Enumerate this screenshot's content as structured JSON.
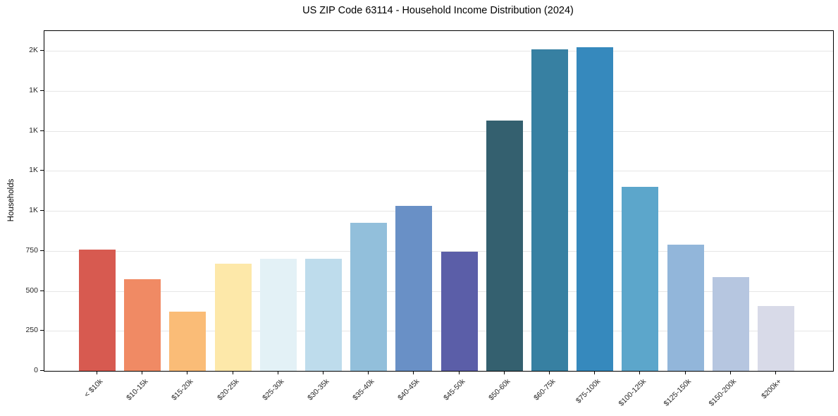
{
  "title": "US ZIP Code 63114 - Household Income Distribution (2024)",
  "chart_data": {
    "type": "bar",
    "title": "US ZIP Code 63114 - Household Income Distribution (2024)",
    "xlabel": "",
    "ylabel": "Households",
    "ylim": [
      0,
      2125
    ],
    "grid": "horizontal",
    "legend": "none",
    "categories": [
      "< $10k",
      "$10-15k",
      "$15-20k",
      "$20-25k",
      "$25-30k",
      "$30-35k",
      "$35-40k",
      "$40-45k",
      "$45-50k",
      "$50-60k",
      "$60-75k",
      "$75-100k",
      "$100-125k",
      "$125-150k",
      "$150-200k",
      "$200k+"
    ],
    "values": [
      760,
      575,
      370,
      670,
      700,
      700,
      925,
      1030,
      745,
      1565,
      2010,
      2025,
      1150,
      790,
      585,
      405
    ],
    "bar_colors": [
      "#d75a50",
      "#f08a64",
      "#fabc77",
      "#fde8a9",
      "#e3f1f6",
      "#bedcec",
      "#92bfdb",
      "#6990c6",
      "#5b5ea8",
      "#34606f",
      "#3780a2",
      "#3689bd",
      "#5ca6cb",
      "#92b6da",
      "#b6c6e0",
      "#d8dae8"
    ],
    "y_ticks": [
      {
        "value": 0,
        "label": "0"
      },
      {
        "value": 250,
        "label": "250"
      },
      {
        "value": 500,
        "label": "500"
      },
      {
        "value": 750,
        "label": "750"
      },
      {
        "value": 1000,
        "label": "1K"
      },
      {
        "value": 1250,
        "label": "1K"
      },
      {
        "value": 1500,
        "label": "1K"
      },
      {
        "value": 1750,
        "label": "1K"
      },
      {
        "value": 2000,
        "label": "2K"
      }
    ]
  },
  "colors": {
    "background": "#ffffff",
    "axis": "#000000",
    "gridline": "#e6e6e6",
    "tick_text": "#262626",
    "title_text": "#000000"
  }
}
